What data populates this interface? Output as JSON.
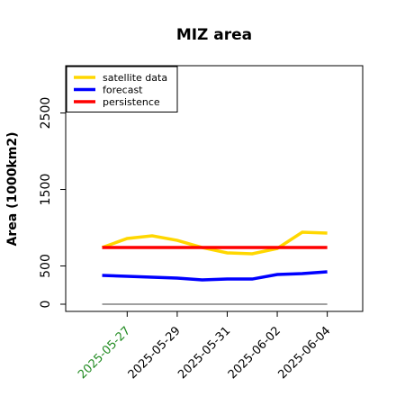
{
  "chart_data": {
    "type": "line",
    "title": "MIZ area",
    "ylabel": "Area (1000km2)",
    "x": [
      "2025-05-26",
      "2025-05-27",
      "2025-05-28",
      "2025-05-29",
      "2025-05-30",
      "2025-05-31",
      "2025-06-01",
      "2025-06-02",
      "2025-06-03",
      "2025-06-04"
    ],
    "series": [
      {
        "name": "satellite data",
        "color": "#ffd700",
        "values": [
          741,
          859,
          894,
          835,
          741,
          671,
          659,
          729,
          941,
          929
        ]
      },
      {
        "name": "forecast",
        "color": "#0000ff",
        "values": [
          376,
          365,
          353,
          341,
          318,
          329,
          329,
          388,
          400,
          424
        ]
      },
      {
        "name": "persistence",
        "color": "#ff0000",
        "values": [
          741,
          741,
          741,
          741,
          741,
          741,
          741,
          741,
          741,
          741
        ]
      },
      {
        "color": "#808080",
        "values": [
          0,
          0,
          0,
          0,
          0,
          0,
          0,
          0,
          0,
          0
        ]
      }
    ],
    "xlim": [
      "2025-05-24T13:00",
      "2025-06-05T10:00"
    ],
    "xticks": [
      "2025-05-27",
      "2025-05-29",
      "2025-05-31",
      "2025-06-02",
      "2025-06-04"
    ],
    "xtick_colors": [
      "#228b22",
      "#000000",
      "#000000",
      "#000000",
      "#000000"
    ],
    "ylim": [
      -94,
      3118
    ],
    "yticks": [
      0,
      500,
      1500,
      2500
    ],
    "legend": "top-left"
  }
}
